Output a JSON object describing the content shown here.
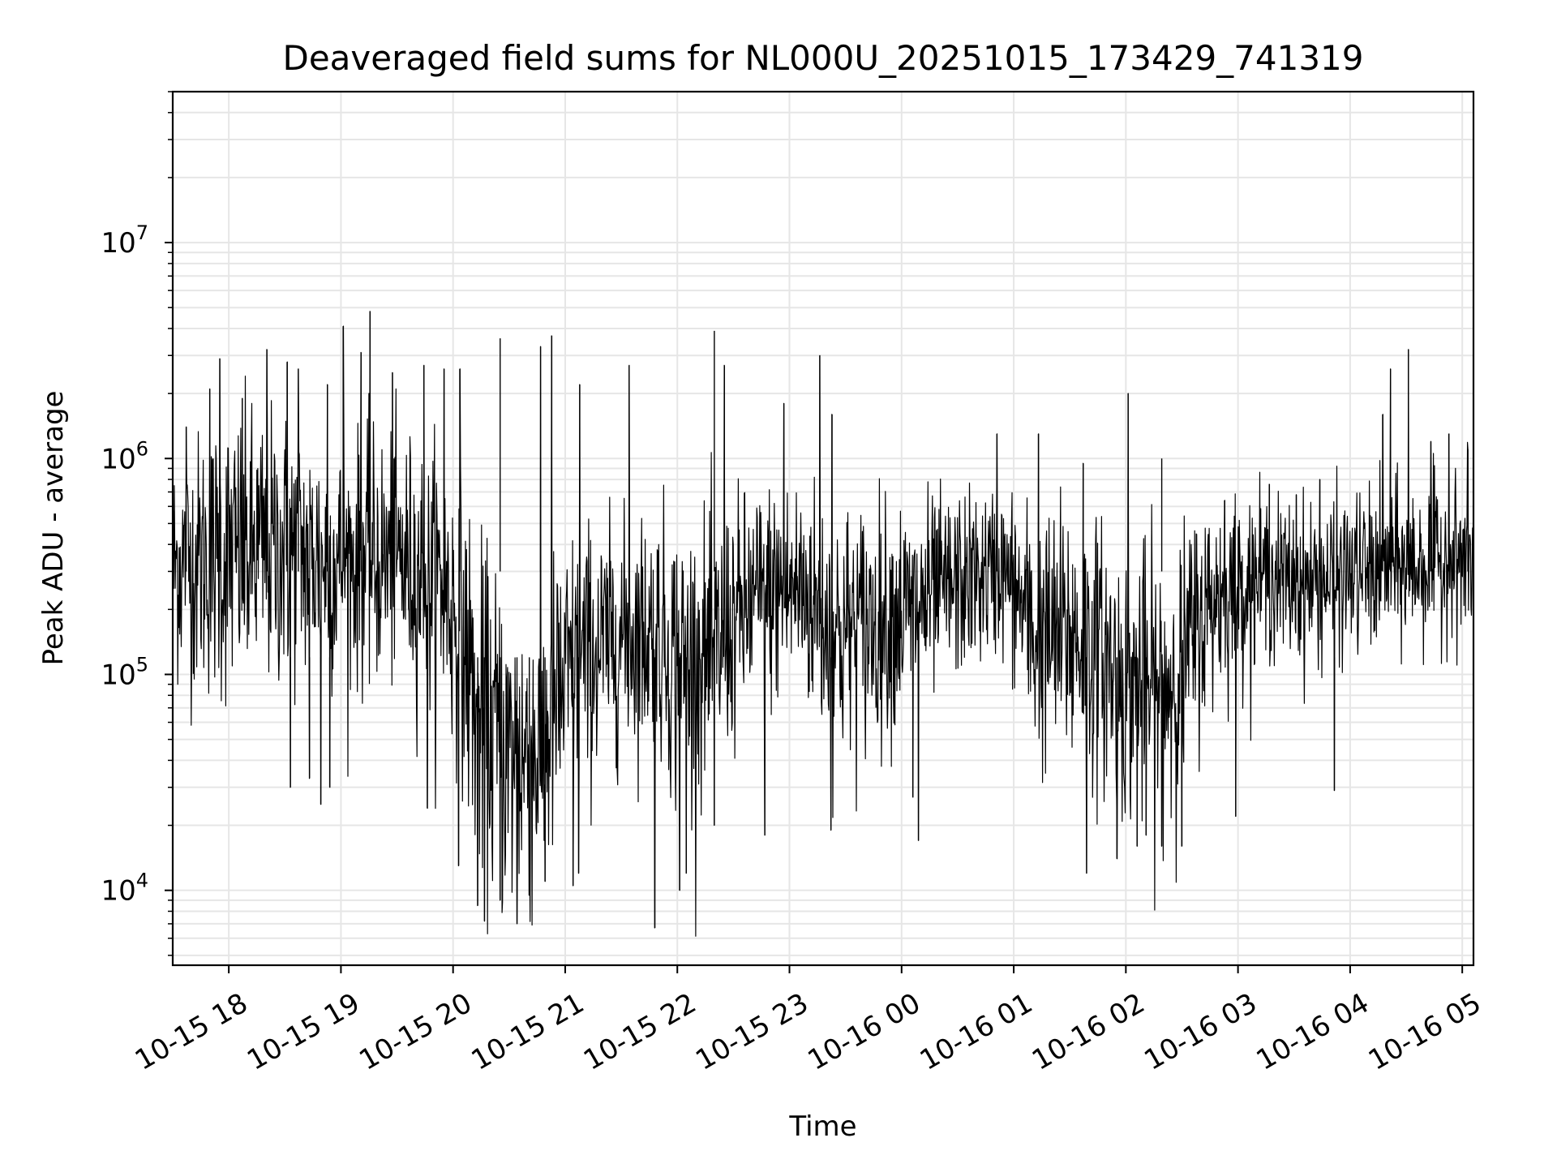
{
  "chart_data": {
    "type": "line",
    "title": "Deaveraged field sums for NL000U_20251015_173429_741319",
    "xlabel": "Time",
    "ylabel": "Peak ADU - average",
    "yscale": "log",
    "ylim": [
      4500,
      50000000
    ],
    "xlim_hours": [
      17.5,
      29.1
    ],
    "grid": true,
    "line_color": "#000000",
    "x_ticks": [
      {
        "label": "10-15 18",
        "hour": 18
      },
      {
        "label": "10-15 19",
        "hour": 19
      },
      {
        "label": "10-15 20",
        "hour": 20
      },
      {
        "label": "10-15 21",
        "hour": 21
      },
      {
        "label": "10-15 22",
        "hour": 22
      },
      {
        "label": "10-15 23",
        "hour": 23
      },
      {
        "label": "10-16 00",
        "hour": 24
      },
      {
        "label": "10-16 01",
        "hour": 25
      },
      {
        "label": "10-16 02",
        "hour": 26
      },
      {
        "label": "10-16 03",
        "hour": 27
      },
      {
        "label": "10-16 04",
        "hour": 28
      },
      {
        "label": "10-16 05",
        "hour": 29
      }
    ],
    "y_ticks": [
      {
        "base": "10",
        "exp": "4",
        "value": 10000
      },
      {
        "base": "10",
        "exp": "5",
        "value": 100000
      },
      {
        "base": "10",
        "exp": "6",
        "value": 1000000
      },
      {
        "base": "10",
        "exp": "7",
        "value": 10000000
      }
    ],
    "trend_profile": {
      "hours": [
        17.5,
        18.0,
        18.5,
        19.0,
        19.5,
        19.9,
        20.2,
        20.5,
        20.8,
        21.1,
        21.5,
        21.8,
        22.0,
        22.3,
        22.7,
        23.1,
        23.4,
        23.7,
        24.1,
        24.5,
        24.9,
        25.2,
        25.5,
        25.8,
        26.0,
        26.3,
        26.5,
        26.8,
        27.2,
        27.6,
        28.0,
        28.4,
        28.8,
        29.1
      ],
      "median": [
        320000,
        350000,
        380000,
        330000,
        340000,
        260000,
        70000,
        40000,
        45000,
        110000,
        150000,
        160000,
        110000,
        120000,
        220000,
        250000,
        150000,
        170000,
        200000,
        260000,
        300000,
        140000,
        150000,
        120000,
        90000,
        80000,
        110000,
        230000,
        280000,
        260000,
        290000,
        310000,
        330000,
        340000
      ],
      "spread_dex": [
        0.35,
        0.45,
        0.42,
        0.38,
        0.38,
        0.42,
        0.5,
        0.52,
        0.5,
        0.42,
        0.35,
        0.38,
        0.45,
        0.4,
        0.35,
        0.35,
        0.4,
        0.38,
        0.33,
        0.28,
        0.25,
        0.38,
        0.42,
        0.4,
        0.42,
        0.45,
        0.4,
        0.3,
        0.25,
        0.25,
        0.25,
        0.25,
        0.25,
        0.25
      ]
    },
    "spikes": [
      {
        "hour": 17.62,
        "value": 1400000
      },
      {
        "hour": 17.83,
        "value": 2100000
      },
      {
        "hour": 17.92,
        "value": 2900000
      },
      {
        "hour": 18.12,
        "value": 1900000
      },
      {
        "hour": 18.34,
        "value": 3200000
      },
      {
        "hour": 18.52,
        "value": 2800000
      },
      {
        "hour": 18.62,
        "value": 2600000
      },
      {
        "hour": 18.88,
        "value": 2200000
      },
      {
        "hour": 19.02,
        "value": 4100000
      },
      {
        "hour": 19.18,
        "value": 3100000
      },
      {
        "hour": 19.26,
        "value": 4800000
      },
      {
        "hour": 19.46,
        "value": 2500000
      },
      {
        "hour": 19.74,
        "value": 2700000
      },
      {
        "hour": 19.92,
        "value": 2600000
      },
      {
        "hour": 20.06,
        "value": 2600000
      },
      {
        "hour": 20.42,
        "value": 3600000
      },
      {
        "hour": 20.78,
        "value": 3300000
      },
      {
        "hour": 20.88,
        "value": 3700000
      },
      {
        "hour": 21.13,
        "value": 2200000
      },
      {
        "hour": 21.57,
        "value": 2700000
      },
      {
        "hour": 22.33,
        "value": 3900000
      },
      {
        "hour": 22.42,
        "value": 2700000
      },
      {
        "hour": 22.95,
        "value": 1800000
      },
      {
        "hour": 23.27,
        "value": 3000000
      },
      {
        "hour": 23.38,
        "value": 1600000
      },
      {
        "hour": 24.85,
        "value": 1300000
      },
      {
        "hour": 25.22,
        "value": 1300000
      },
      {
        "hour": 25.62,
        "value": 950000
      },
      {
        "hour": 26.02,
        "value": 2000000
      },
      {
        "hour": 26.32,
        "value": 1000000
      },
      {
        "hour": 26.88,
        "value": 640000
      },
      {
        "hour": 27.28,
        "value": 760000
      },
      {
        "hour": 27.52,
        "value": 680000
      },
      {
        "hour": 27.73,
        "value": 800000
      },
      {
        "hour": 28.29,
        "value": 1600000
      },
      {
        "hour": 28.36,
        "value": 2600000
      },
      {
        "hour": 28.52,
        "value": 3200000
      },
      {
        "hour": 28.72,
        "value": 1200000
      },
      {
        "hour": 28.88,
        "value": 1300000
      },
      {
        "hour": 29.05,
        "value": 1100000
      }
    ],
    "dips": [
      {
        "hour": 18.55,
        "value": 30000
      },
      {
        "hour": 18.72,
        "value": 33000
      },
      {
        "hour": 18.82,
        "value": 25000
      },
      {
        "hour": 18.9,
        "value": 30000
      },
      {
        "hour": 19.77,
        "value": 24000
      },
      {
        "hour": 20.05,
        "value": 13000
      },
      {
        "hour": 20.22,
        "value": 8500
      },
      {
        "hour": 20.28,
        "value": 7200
      },
      {
        "hour": 20.42,
        "value": 9000
      },
      {
        "hour": 20.57,
        "value": 7000
      },
      {
        "hour": 20.68,
        "value": 9500
      },
      {
        "hour": 20.82,
        "value": 11000
      },
      {
        "hour": 21.07,
        "value": 10500
      },
      {
        "hour": 21.12,
        "value": 12000
      },
      {
        "hour": 21.8,
        "value": 6700
      },
      {
        "hour": 22.02,
        "value": 10000
      },
      {
        "hour": 22.08,
        "value": 12000
      },
      {
        "hour": 22.33,
        "value": 20000
      },
      {
        "hour": 22.78,
        "value": 18000
      },
      {
        "hour": 23.37,
        "value": 19000
      },
      {
        "hour": 24.1,
        "value": 27000
      },
      {
        "hour": 24.15,
        "value": 17000
      },
      {
        "hour": 25.65,
        "value": 12000
      },
      {
        "hour": 25.92,
        "value": 14000
      },
      {
        "hour": 26.1,
        "value": 16000
      },
      {
        "hour": 26.18,
        "value": 18000
      },
      {
        "hour": 26.32,
        "value": 16000
      },
      {
        "hour": 26.5,
        "value": 16000
      },
      {
        "hour": 26.98,
        "value": 22000
      },
      {
        "hour": 27.86,
        "value": 29000
      }
    ]
  }
}
